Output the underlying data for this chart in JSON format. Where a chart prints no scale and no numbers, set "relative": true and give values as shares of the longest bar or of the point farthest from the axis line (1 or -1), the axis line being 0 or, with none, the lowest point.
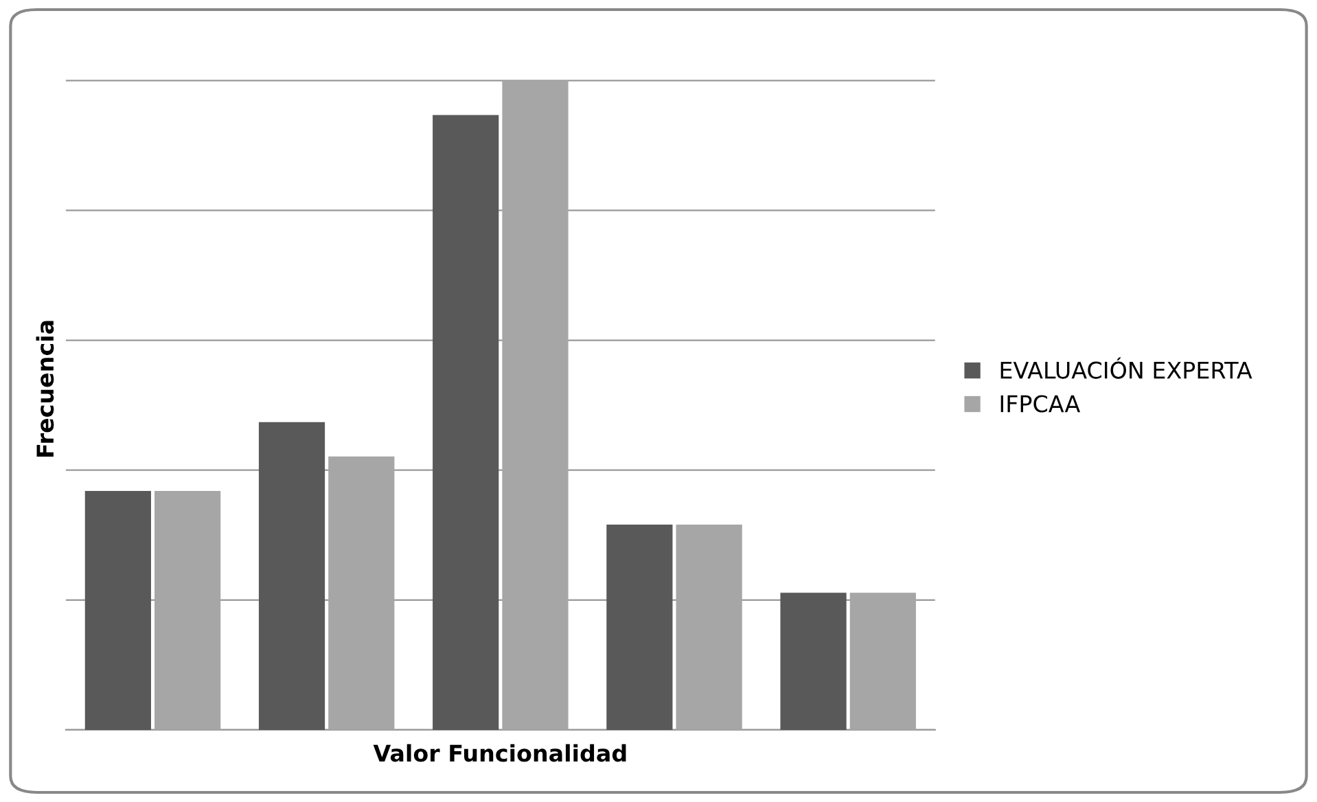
{
  "chart_data": {
    "type": "bar",
    "xlabel": "Valor Funcionalidad",
    "ylabel": "Frecuencia",
    "categories": [
      null,
      null,
      null,
      null,
      null
    ],
    "series": [
      {
        "name": "EVALUACIÓN EXPERTA",
        "color": "#595959",
        "values": [
          0.368,
          0.474,
          0.947,
          0.316,
          0.211
        ]
      },
      {
        "name": "IFPCAA",
        "color": "#a6a6a6",
        "values": [
          0.368,
          0.421,
          1,
          0.316,
          0.211
        ]
      }
    ],
    "relative": true,
    "grid": "y",
    "legend": "right"
  }
}
